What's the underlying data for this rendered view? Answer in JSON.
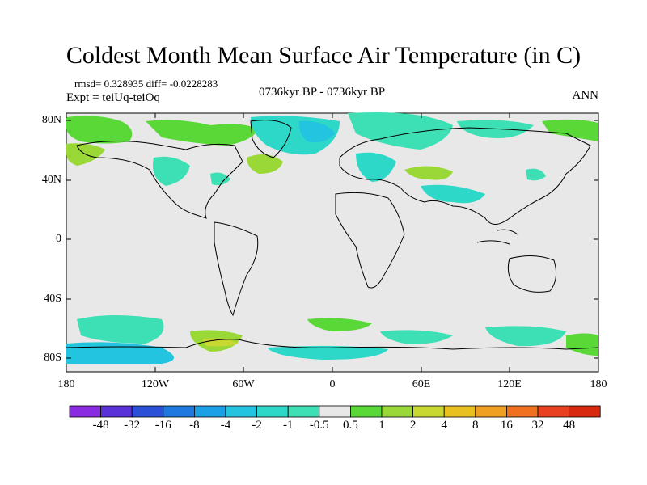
{
  "title": "Coldest Month Mean Surface Air Temperature (in C)",
  "stats": "rmsd= 0.328935  diff= -0.0228283",
  "experiment": "Expt = teiUq-teiOq",
  "period": "0736kyr BP - 0736kyr BP",
  "season": "ANN",
  "y_ticks": [
    "80N",
    "40N",
    "0",
    "40S",
    "80S"
  ],
  "x_ticks": [
    "180",
    "120W",
    "60W",
    "0",
    "60E",
    "120E",
    "180"
  ],
  "colorbar": {
    "labels": [
      "-48",
      "-32",
      "-16",
      "-8",
      "-4",
      "-2",
      "-1",
      "-0.5",
      "0.5",
      "1",
      "2",
      "4",
      "8",
      "16",
      "32",
      "48"
    ],
    "colors": [
      "#8a2be2",
      "#5a30d8",
      "#2c4fd8",
      "#1e78e0",
      "#1aa0e6",
      "#22c4e0",
      "#2ed8c8",
      "#3ce0b4",
      "#e8e8e8",
      "#5ad838",
      "#9ad838",
      "#c8d830",
      "#e8c020",
      "#f0a020",
      "#f07020",
      "#e84020",
      "#d82810"
    ]
  },
  "colors": {
    "ocean_bg": "#e8e8e8",
    "coast": "#000000"
  }
}
